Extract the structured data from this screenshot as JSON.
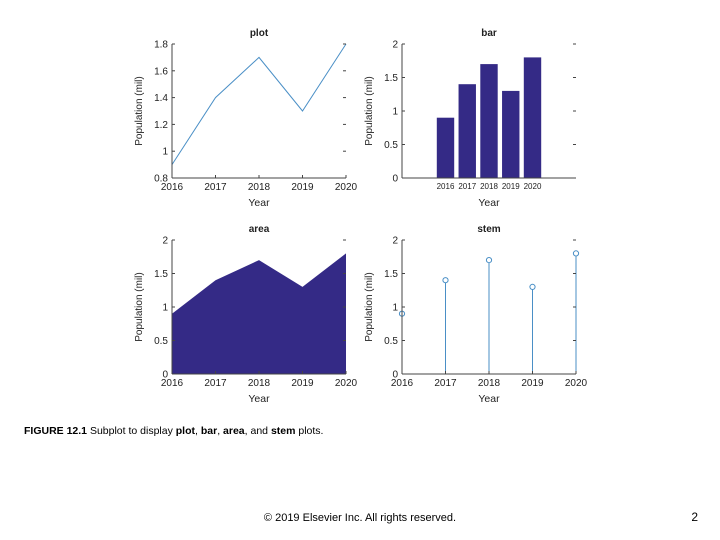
{
  "chart_data": [
    {
      "type": "line",
      "title": "plot",
      "xlabel": "Year",
      "ylabel": "Population (mil)",
      "x": [
        2016,
        2017,
        2018,
        2019,
        2020
      ],
      "values": [
        0.9,
        1.4,
        1.7,
        1.3,
        1.8
      ],
      "xlim": [
        2016,
        2020
      ],
      "ylim": [
        0.8,
        1.8
      ],
      "xticks": [
        "2016",
        "2017",
        "2018",
        "2019",
        "2020"
      ],
      "yticks": [
        "0.8",
        "1",
        "1.2",
        "1.4",
        "1.6",
        "1.8"
      ],
      "color": "#4a8fc6",
      "grid": false
    },
    {
      "type": "bar",
      "title": "bar",
      "xlabel": "Year",
      "ylabel": "Population (mil)",
      "categories": [
        "2016",
        "2017",
        "2018",
        "2019",
        "2020"
      ],
      "values": [
        0.9,
        1.4,
        1.7,
        1.3,
        1.8
      ],
      "ylim": [
        0,
        2
      ],
      "yticks": [
        "0",
        "0.5",
        "1",
        "1.5",
        "2"
      ],
      "color": "#342a86",
      "grid": false
    },
    {
      "type": "area",
      "title": "area",
      "xlabel": "Year",
      "ylabel": "Population (mil)",
      "x": [
        2016,
        2017,
        2018,
        2019,
        2020
      ],
      "values": [
        0.9,
        1.4,
        1.7,
        1.3,
        1.8
      ],
      "xlim": [
        2016,
        2020
      ],
      "ylim": [
        0,
        2
      ],
      "xticks": [
        "2016",
        "2017",
        "2018",
        "2019",
        "2020"
      ],
      "yticks": [
        "0",
        "0.5",
        "1",
        "1.5",
        "2"
      ],
      "color": "#342a86",
      "grid": false
    },
    {
      "type": "stem",
      "title": "stem",
      "xlabel": "Year",
      "ylabel": "Population (mil)",
      "x": [
        2016,
        2017,
        2018,
        2019,
        2020
      ],
      "values": [
        0.9,
        1.4,
        1.7,
        1.3,
        1.8
      ],
      "xlim": [
        2016,
        2020
      ],
      "ylim": [
        0,
        2
      ],
      "xticks": [
        "2016",
        "2017",
        "2018",
        "2019",
        "2020"
      ],
      "yticks": [
        "0",
        "0.5",
        "1",
        "1.5",
        "2"
      ],
      "color": "#4a8fc6",
      "grid": false
    }
  ],
  "caption": {
    "label": "FIGURE 12.1",
    "text_1": " Subplot to display ",
    "b1": "plot",
    "sep1": ", ",
    "b2": "bar",
    "sep2": ", ",
    "b3": "area",
    "sep3": ", and ",
    "b4": "stem",
    "text_2": " plots."
  },
  "footer": "© 2019 Elsevier Inc. All rights reserved.",
  "page_number": "2"
}
